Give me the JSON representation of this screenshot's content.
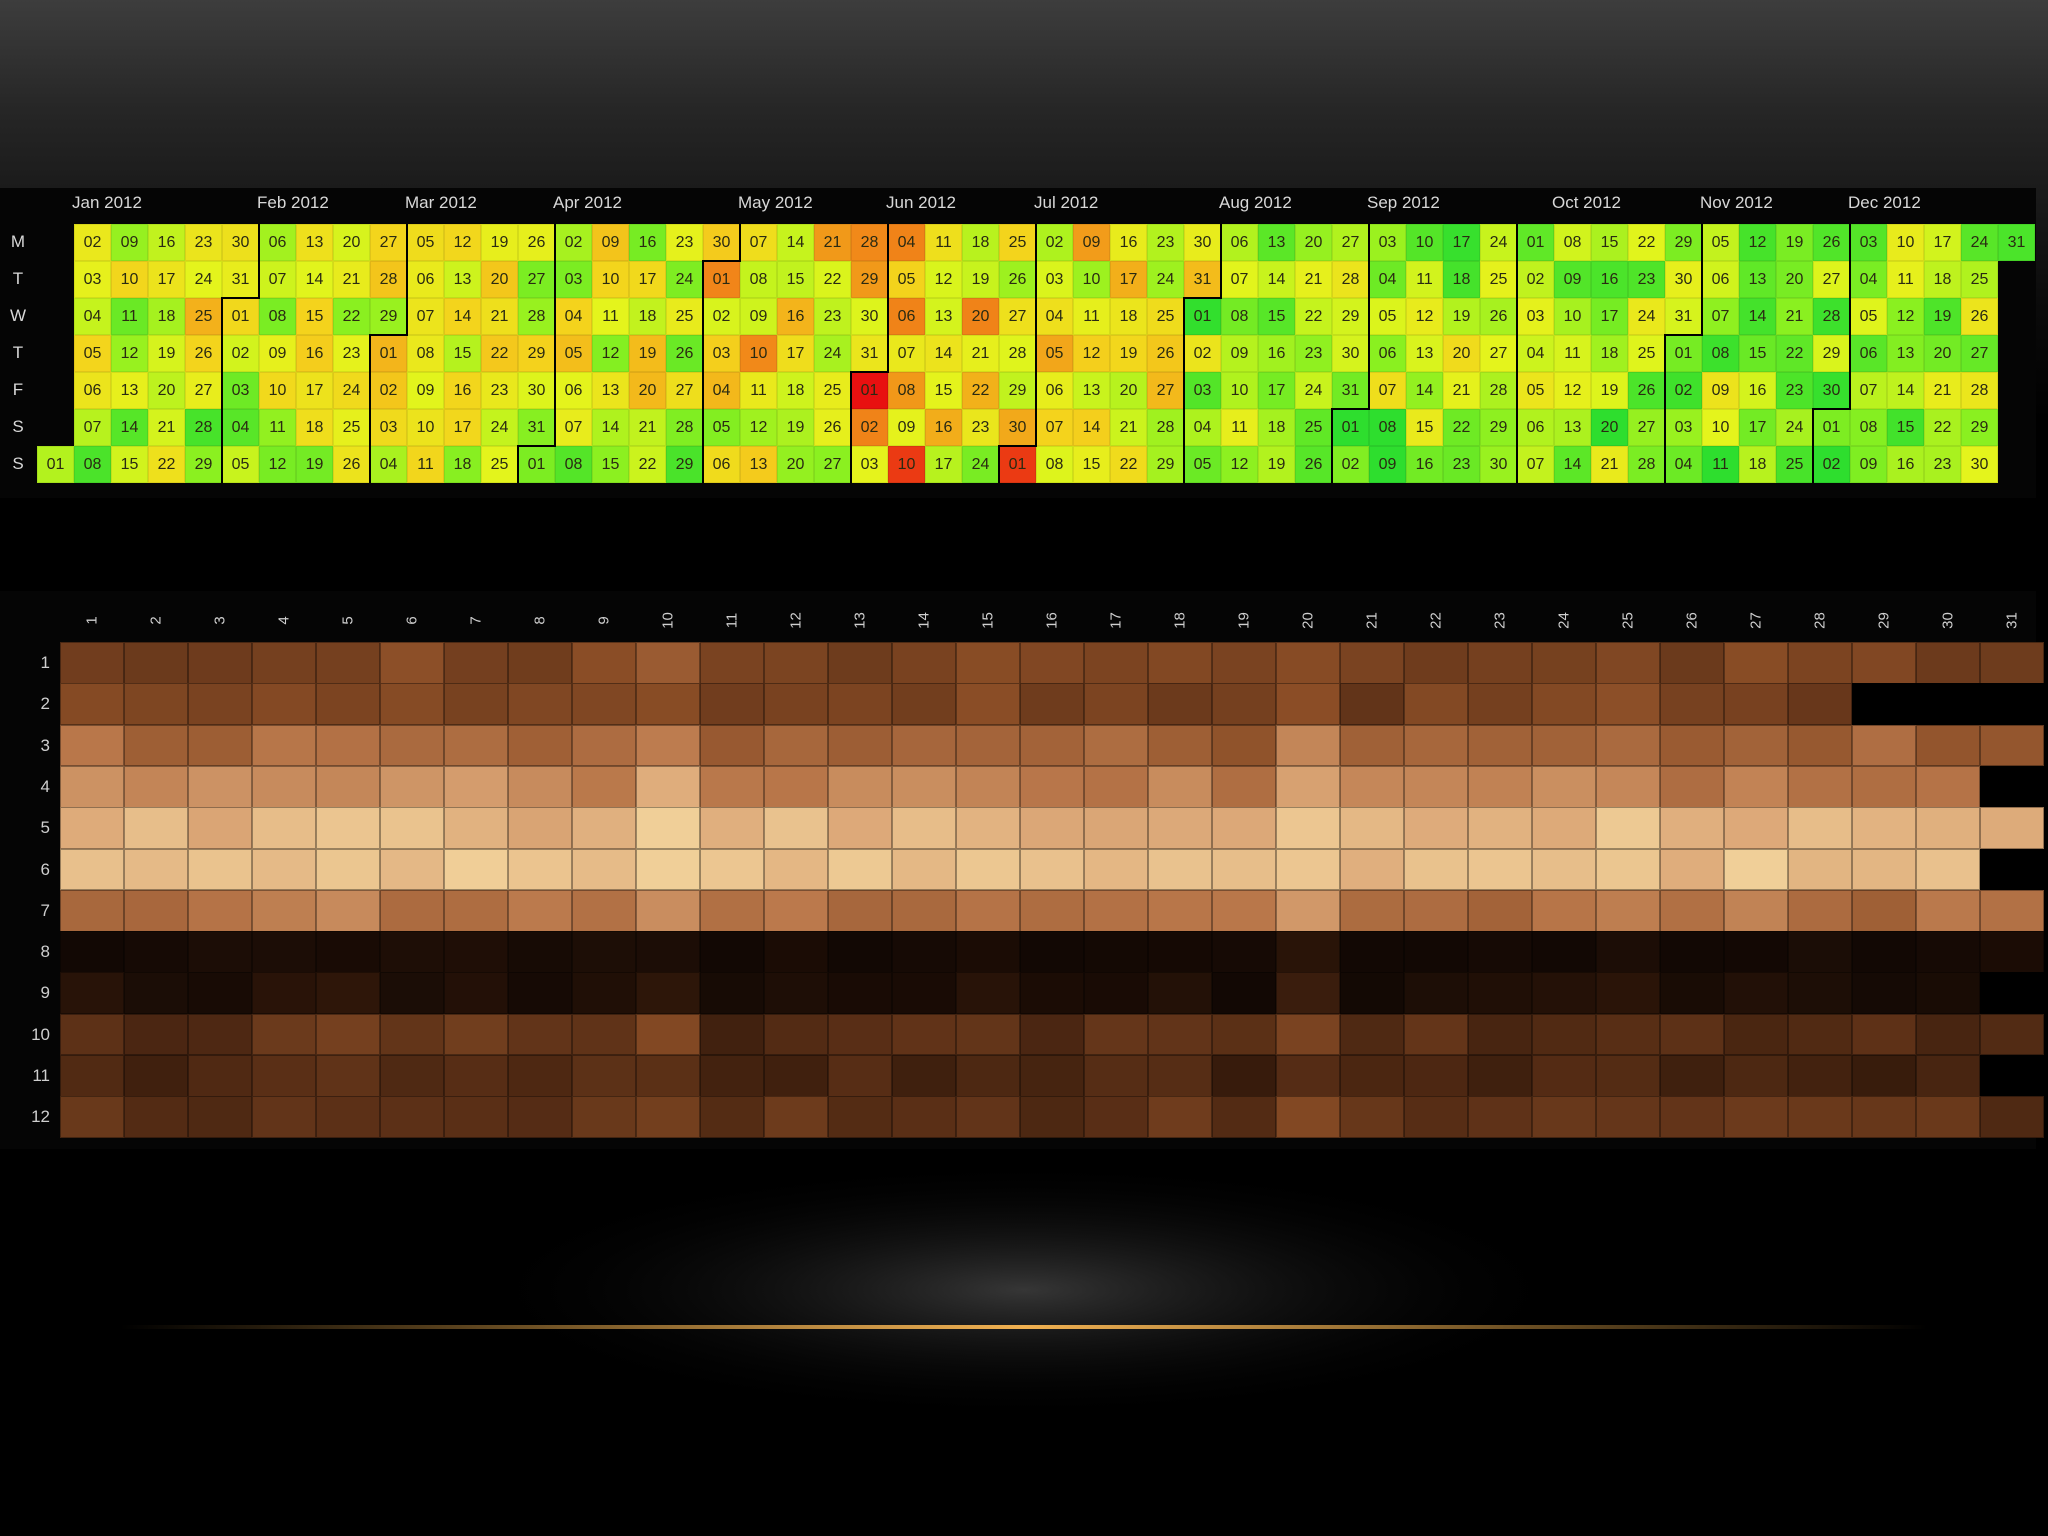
{
  "chart_data": [
    {
      "type": "heatmap",
      "title": "",
      "year": 2012,
      "months": [
        "Jan 2012",
        "Feb 2012",
        "Mar 2012",
        "Apr 2012",
        "May 2012",
        "Jun 2012",
        "Jul 2012",
        "Aug 2012",
        "Sep 2012",
        "Oct 2012",
        "Nov 2012",
        "Dec 2012"
      ],
      "weekday_labels": [
        "M",
        "T",
        "W",
        "T",
        "F",
        "S",
        "S"
      ],
      "color_scale": [
        "#e81010",
        "#f07a18",
        "#f4d21c",
        "#e4f41c",
        "#8cf020",
        "#2ede2e"
      ],
      "hot_dates": [
        "2012-06-01",
        "2012-06-02",
        "2012-06-10",
        "2012-07-01",
        "2012-06-04",
        "2012-06-06",
        "2012-06-20"
      ],
      "grid": false,
      "legend": "none"
    },
    {
      "type": "heatmap",
      "xlabel": "",
      "ylabel": "",
      "x_categories": [
        "1",
        "2",
        "3",
        "4",
        "5",
        "6",
        "7",
        "8",
        "9",
        "10",
        "11",
        "12",
        "13",
        "14",
        "15",
        "16",
        "17",
        "18",
        "19",
        "20",
        "21",
        "22",
        "23",
        "24",
        "25",
        "26",
        "27",
        "28",
        "29",
        "30",
        "31"
      ],
      "y_categories": [
        "1",
        "2",
        "3",
        "4",
        "5",
        "6",
        "7",
        "8",
        "9",
        "10",
        "11",
        "12"
      ],
      "color_scale": [
        "#120804",
        "#2a1408",
        "#5a2f16",
        "#8a4d26",
        "#b9774a",
        "#dca878",
        "#f0cf98"
      ],
      "value_range": [
        0,
        1
      ],
      "row_means": [
        0.45,
        0.45,
        0.62,
        0.72,
        0.9,
        0.95,
        0.66,
        0.04,
        0.1,
        0.34,
        0.3,
        0.36
      ],
      "column_offsets": [
        0.0,
        0.0,
        -0.02,
        0.01,
        0.03,
        0.0,
        0.02,
        -0.02,
        0.0,
        0.08,
        -0.04,
        0.0,
        -0.02,
        -0.01,
        0.03,
        -0.04,
        -0.02,
        -0.01,
        -0.05,
        0.07,
        -0.03,
        -0.02,
        -0.02,
        -0.01,
        0.04,
        -0.04,
        -0.01,
        -0.02,
        -0.04,
        -0.03,
        -0.03
      ],
      "missing_days": {
        "2": [
          29,
          30,
          31
        ],
        "4": [
          31
        ],
        "6": [
          31
        ],
        "9": [
          31
        ],
        "11": [
          31
        ]
      },
      "grid": false,
      "legend": "none"
    }
  ],
  "theme": {
    "background_top": "#3d3d3d",
    "background_bottom": "#000000",
    "glow_color": "#f0b050"
  }
}
